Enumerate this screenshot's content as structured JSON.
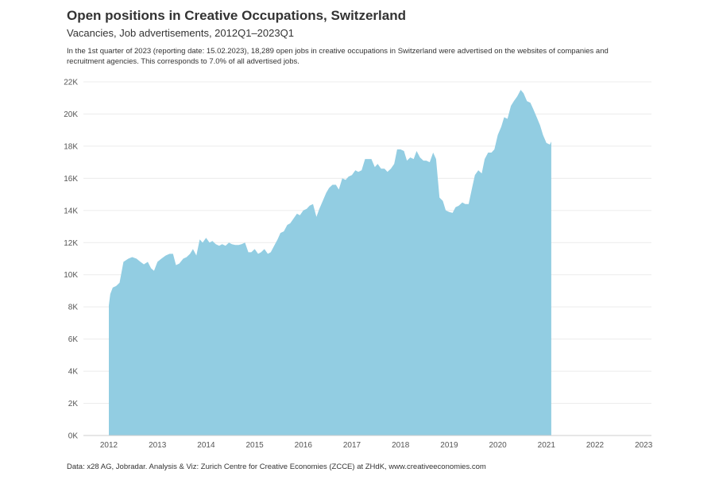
{
  "title": "Open positions in Creative Occupations, Switzerland",
  "subtitle": "Vacancies, Job advertisements, 2012Q1–2023Q1",
  "description": "In the 1st quarter of 2023 (reporting date: 15.02.2023), 18,289 open jobs in creative occupations in Switzerland were advertised on the websites of companies and recruitment agencies. This corresponds to 7.0% of all advertised jobs.",
  "footer": "Data: x28 AG, Jobradar. Analysis & Viz: Zurich Centre for Creative Economies (ZCCE) at ZHdK, www.creativeeconomies.com",
  "colors": {
    "area": "#92cde2",
    "grid": "#ececec",
    "axis": "#cccccc"
  },
  "chart_data": {
    "type": "area",
    "title": "Open positions in Creative Occupations, Switzerland",
    "subtitle": "Vacancies, Job advertisements, 2012Q1–2023Q1",
    "xlabel": "",
    "ylabel": "",
    "xlim": [
      2011.75,
      2023.15
    ],
    "ylim": [
      0,
      22000
    ],
    "grid": true,
    "yticks": [
      0,
      2000,
      4000,
      6000,
      8000,
      10000,
      12000,
      14000,
      16000,
      18000,
      20000,
      22000
    ],
    "ytick_labels": [
      "0K",
      "2K",
      "4K",
      "6K",
      "8K",
      "10K",
      "12K",
      "14K",
      "16K",
      "18K",
      "20K",
      "22K"
    ],
    "xticks": [
      2012,
      2013,
      2014,
      2015,
      2016,
      2017,
      2018,
      2019,
      2020,
      2021,
      2022,
      2023
    ],
    "xtick_labels": [
      "2012",
      "2013",
      "2014",
      "2015",
      "2016",
      "2017",
      "2018",
      "2019",
      "2020",
      "2021",
      "2022",
      "2023"
    ],
    "points": [
      [
        2012.0,
        8100
      ],
      [
        2012.03,
        8800
      ],
      [
        2012.08,
        9200
      ],
      [
        2012.15,
        9300
      ],
      [
        2012.22,
        9500
      ],
      [
        2012.3,
        10800
      ],
      [
        2012.4,
        11000
      ],
      [
        2012.48,
        11100
      ],
      [
        2012.57,
        11000
      ],
      [
        2012.65,
        10800
      ],
      [
        2012.72,
        10650
      ],
      [
        2012.8,
        10800
      ],
      [
        2012.87,
        10400
      ],
      [
        2012.93,
        10250
      ],
      [
        2013.0,
        10800
      ],
      [
        2013.08,
        11000
      ],
      [
        2013.17,
        11200
      ],
      [
        2013.25,
        11300
      ],
      [
        2013.32,
        11300
      ],
      [
        2013.38,
        10600
      ],
      [
        2013.45,
        10700
      ],
      [
        2013.53,
        11000
      ],
      [
        2013.6,
        11100
      ],
      [
        2013.67,
        11300
      ],
      [
        2013.73,
        11600
      ],
      [
        2013.8,
        11200
      ],
      [
        2013.87,
        12200
      ],
      [
        2013.93,
        12000
      ],
      [
        2014.0,
        12300
      ],
      [
        2014.07,
        12000
      ],
      [
        2014.13,
        12100
      ],
      [
        2014.2,
        11900
      ],
      [
        2014.27,
        11800
      ],
      [
        2014.33,
        11900
      ],
      [
        2014.4,
        11800
      ],
      [
        2014.47,
        12000
      ],
      [
        2014.53,
        11900
      ],
      [
        2014.6,
        11850
      ],
      [
        2014.67,
        11850
      ],
      [
        2014.73,
        11900
      ],
      [
        2014.8,
        12000
      ],
      [
        2014.87,
        11400
      ],
      [
        2014.93,
        11400
      ],
      [
        2015.0,
        11600
      ],
      [
        2015.07,
        11300
      ],
      [
        2015.13,
        11400
      ],
      [
        2015.2,
        11600
      ],
      [
        2015.27,
        11300
      ],
      [
        2015.33,
        11400
      ],
      [
        2015.4,
        11800
      ],
      [
        2015.47,
        12200
      ],
      [
        2015.53,
        12600
      ],
      [
        2015.6,
        12700
      ],
      [
        2015.67,
        13100
      ],
      [
        2015.73,
        13200
      ],
      [
        2015.8,
        13500
      ],
      [
        2015.87,
        13800
      ],
      [
        2015.93,
        13700
      ],
      [
        2016.0,
        14000
      ],
      [
        2016.07,
        14100
      ],
      [
        2016.13,
        14300
      ],
      [
        2016.2,
        14400
      ],
      [
        2016.27,
        13600
      ],
      [
        2016.33,
        14100
      ],
      [
        2016.4,
        14600
      ],
      [
        2016.47,
        15100
      ],
      [
        2016.53,
        15400
      ],
      [
        2016.6,
        15600
      ],
      [
        2016.67,
        15600
      ],
      [
        2016.73,
        15300
      ],
      [
        2016.8,
        16000
      ],
      [
        2016.87,
        15900
      ],
      [
        2016.93,
        16100
      ],
      [
        2017.0,
        16200
      ],
      [
        2017.07,
        16500
      ],
      [
        2017.13,
        16400
      ],
      [
        2017.2,
        16500
      ],
      [
        2017.27,
        17200
      ],
      [
        2017.33,
        17200
      ],
      [
        2017.4,
        17200
      ],
      [
        2017.47,
        16700
      ],
      [
        2017.53,
        16900
      ],
      [
        2017.6,
        16600
      ],
      [
        2017.67,
        16600
      ],
      [
        2017.73,
        16400
      ],
      [
        2017.8,
        16600
      ],
      [
        2017.87,
        16900
      ],
      [
        2017.93,
        17800
      ],
      [
        2018.0,
        17800
      ],
      [
        2018.07,
        17700
      ],
      [
        2018.13,
        17100
      ],
      [
        2018.2,
        17300
      ],
      [
        2018.27,
        17200
      ],
      [
        2018.33,
        17700
      ],
      [
        2018.4,
        17300
      ],
      [
        2018.47,
        17100
      ],
      [
        2018.53,
        17100
      ],
      [
        2018.6,
        17000
      ],
      [
        2018.67,
        17600
      ],
      [
        2018.73,
        17200
      ],
      [
        2018.8,
        14800
      ],
      [
        2018.87,
        14600
      ],
      [
        2018.93,
        14000
      ],
      [
        2019.0,
        13900
      ],
      [
        2019.07,
        13850
      ],
      [
        2019.13,
        14200
      ],
      [
        2019.2,
        14300
      ],
      [
        2019.27,
        14500
      ],
      [
        2019.33,
        14400
      ],
      [
        2019.4,
        14400
      ],
      [
        2019.47,
        15400
      ],
      [
        2019.53,
        16200
      ],
      [
        2019.6,
        16500
      ],
      [
        2019.67,
        16300
      ],
      [
        2019.73,
        17200
      ],
      [
        2019.8,
        17600
      ],
      [
        2019.87,
        17600
      ],
      [
        2019.93,
        17800
      ],
      [
        2020.0,
        18700
      ],
      [
        2020.07,
        19200
      ],
      [
        2020.13,
        19800
      ],
      [
        2020.2,
        19700
      ],
      [
        2020.27,
        20500
      ],
      [
        2020.33,
        20800
      ],
      [
        2020.4,
        21100
      ],
      [
        2020.47,
        21500
      ],
      [
        2020.53,
        21300
      ],
      [
        2020.6,
        20800
      ],
      [
        2020.67,
        20700
      ],
      [
        2020.73,
        20300
      ],
      [
        2020.8,
        19800
      ],
      [
        2020.87,
        19300
      ],
      [
        2020.93,
        18700
      ],
      [
        2021.0,
        18200
      ],
      [
        2021.07,
        18100
      ],
      [
        2021.1,
        18289
      ]
    ]
  }
}
